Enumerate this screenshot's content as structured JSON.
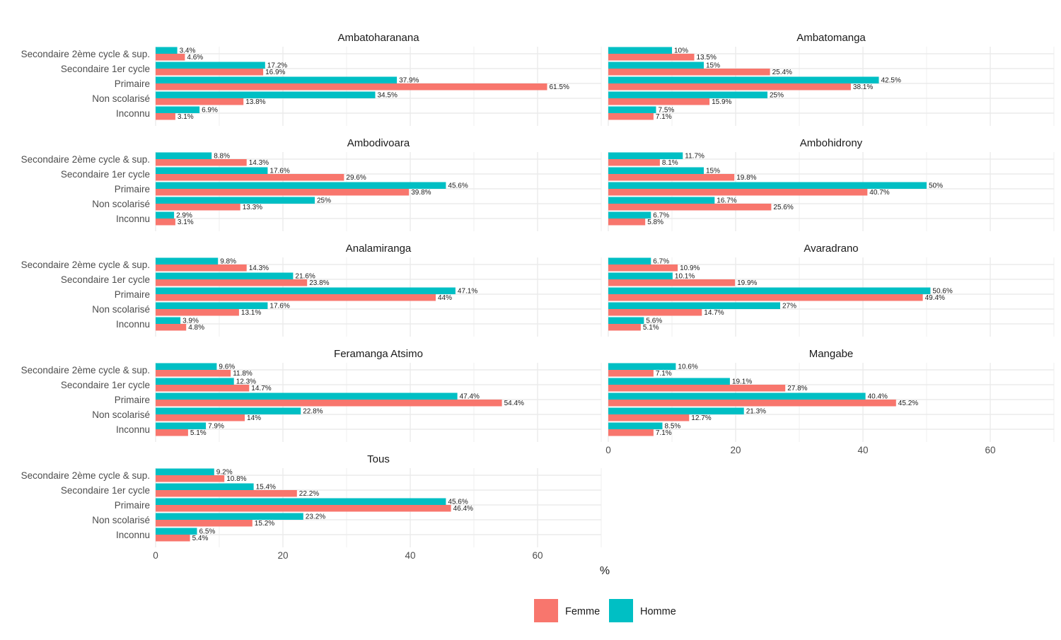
{
  "colors": {
    "Femme": "#F8766D",
    "Homme": "#00BFC4",
    "grid": "#EBEBEB",
    "text": "#4D4D4D",
    "title": "#1A1A1A"
  },
  "chart_data": {
    "type": "bar",
    "orientation": "horizontal",
    "facet": "wrap",
    "categories": [
      "Secondaire 2ème cycle & sup.",
      "Secondaire 1er cycle",
      "Primaire",
      "Non scolarisé",
      "Inconnu"
    ],
    "xlabel": "%",
    "xlim": [
      0,
      70
    ],
    "xticks": [
      0,
      20,
      40,
      60
    ],
    "grid": true,
    "legend": {
      "position": "bottom",
      "entries": [
        "Femme",
        "Homme"
      ]
    },
    "panels": [
      {
        "title": "Ambatoharanana",
        "series": [
          {
            "name": "Homme",
            "values": [
              3.4,
              17.2,
              37.9,
              34.5,
              6.9
            ],
            "labels": [
              "3.4%",
              "17.2%",
              "37.9%",
              "34.5%",
              "6.9%"
            ]
          },
          {
            "name": "Femme",
            "values": [
              4.6,
              16.9,
              61.5,
              13.8,
              3.1
            ],
            "labels": [
              "4.6%",
              "16.9%",
              "61.5%",
              "13.8%",
              "3.1%"
            ]
          }
        ]
      },
      {
        "title": "Ambatomanga",
        "series": [
          {
            "name": "Homme",
            "values": [
              10,
              15,
              42.5,
              25,
              7.5
            ],
            "labels": [
              "10%",
              "15%",
              "42.5%",
              "25%",
              "7.5%"
            ]
          },
          {
            "name": "Femme",
            "values": [
              13.5,
              25.4,
              38.1,
              15.9,
              7.1
            ],
            "labels": [
              "13.5%",
              "25.4%",
              "38.1%",
              "15.9%",
              "7.1%"
            ]
          }
        ]
      },
      {
        "title": "Ambodivoara",
        "series": [
          {
            "name": "Homme",
            "values": [
              8.8,
              17.6,
              45.6,
              25,
              2.9
            ],
            "labels": [
              "8.8%",
              "17.6%",
              "45.6%",
              "25%",
              "2.9%"
            ]
          },
          {
            "name": "Femme",
            "values": [
              14.3,
              29.6,
              39.8,
              13.3,
              3.1
            ],
            "labels": [
              "14.3%",
              "29.6%",
              "39.8%",
              "13.3%",
              "3.1%"
            ]
          }
        ]
      },
      {
        "title": "Ambohidrony",
        "series": [
          {
            "name": "Homme",
            "values": [
              11.7,
              15,
              50,
              16.7,
              6.7
            ],
            "labels": [
              "11.7%",
              "15%",
              "50%",
              "16.7%",
              "6.7%"
            ]
          },
          {
            "name": "Femme",
            "values": [
              8.1,
              19.8,
              40.7,
              25.6,
              5.8
            ],
            "labels": [
              "8.1%",
              "19.8%",
              "40.7%",
              "25.6%",
              "5.8%"
            ]
          }
        ]
      },
      {
        "title": "Analamiranga",
        "series": [
          {
            "name": "Homme",
            "values": [
              9.8,
              21.6,
              47.1,
              17.6,
              3.9
            ],
            "labels": [
              "9.8%",
              "21.6%",
              "47.1%",
              "17.6%",
              "3.9%"
            ]
          },
          {
            "name": "Femme",
            "values": [
              14.3,
              23.8,
              44,
              13.1,
              4.8
            ],
            "labels": [
              "14.3%",
              "23.8%",
              "44%",
              "13.1%",
              "4.8%"
            ]
          }
        ]
      },
      {
        "title": "Avaradrano",
        "series": [
          {
            "name": "Homme",
            "values": [
              6.7,
              10.1,
              50.6,
              27,
              5.6
            ],
            "labels": [
              "6.7%",
              "10.1%",
              "50.6%",
              "27%",
              "5.6%"
            ]
          },
          {
            "name": "Femme",
            "values": [
              10.9,
              19.9,
              49.4,
              14.7,
              5.1
            ],
            "labels": [
              "10.9%",
              "19.9%",
              "49.4%",
              "14.7%",
              "5.1%"
            ]
          }
        ]
      },
      {
        "title": "Feramanga Atsimo",
        "series": [
          {
            "name": "Homme",
            "values": [
              9.6,
              12.3,
              47.4,
              22.8,
              7.9
            ],
            "labels": [
              "9.6%",
              "12.3%",
              "47.4%",
              "22.8%",
              "7.9%"
            ]
          },
          {
            "name": "Femme",
            "values": [
              11.8,
              14.7,
              54.4,
              14,
              5.1
            ],
            "labels": [
              "11.8%",
              "14.7%",
              "54.4%",
              "14%",
              "5.1%"
            ]
          }
        ]
      },
      {
        "title": "Mangabe",
        "series": [
          {
            "name": "Homme",
            "values": [
              10.6,
              19.1,
              40.4,
              21.3,
              8.5
            ],
            "labels": [
              "10.6%",
              "19.1%",
              "40.4%",
              "21.3%",
              "8.5%"
            ]
          },
          {
            "name": "Femme",
            "values": [
              7.1,
              27.8,
              45.2,
              12.7,
              7.1
            ],
            "labels": [
              "7.1%",
              "27.8%",
              "45.2%",
              "12.7%",
              "7.1%"
            ]
          }
        ]
      },
      {
        "title": "Tous",
        "series": [
          {
            "name": "Homme",
            "values": [
              9.2,
              15.4,
              45.6,
              23.2,
              6.5
            ],
            "labels": [
              "9.2%",
              "15.4%",
              "45.6%",
              "23.2%",
              "6.5%"
            ]
          },
          {
            "name": "Femme",
            "values": [
              10.8,
              22.2,
              46.4,
              15.2,
              5.4
            ],
            "labels": [
              "10.8%",
              "22.2%",
              "46.4%",
              "15.2%",
              "5.4%"
            ]
          }
        ]
      }
    ]
  }
}
